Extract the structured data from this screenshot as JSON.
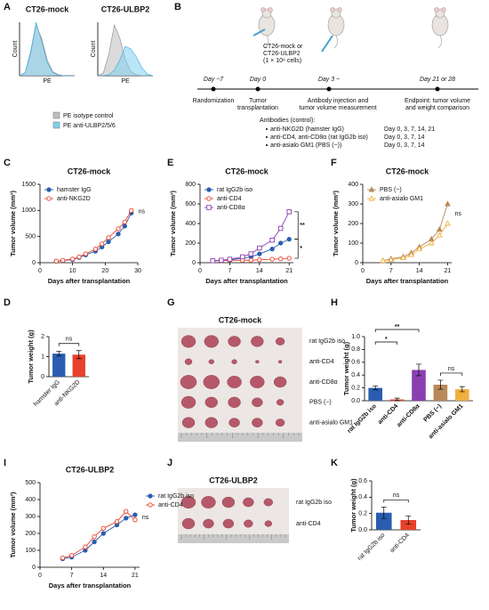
{
  "panel_labels": [
    "A",
    "B",
    "C",
    "D",
    "E",
    "F",
    "G",
    "H",
    "I",
    "J",
    "K"
  ],
  "timeline": {
    "cells_note": [
      "CT26-mock or",
      "CT26-ULBP2",
      "(1 × 10⁶ cells)"
    ],
    "days": [
      "Day −7",
      "Day 0",
      "Day 3 ~",
      "Day 21 or 28"
    ],
    "events": [
      [
        "Randomization"
      ],
      [
        "Tumor",
        "transplantation"
      ],
      [
        "Antibody injection and",
        "tumor volume measurement"
      ],
      [
        "Endpoint: tumor volume",
        "and weight comparison"
      ]
    ],
    "antibodies_title": "Antibodies (control):",
    "antibodies": [
      {
        "name": "anti-NKG2D (hamster IgG)",
        "schedule": "Day 0, 3, 7, 14, 21"
      },
      {
        "name": "anti-CD4, anti-CD8α (rat IgG2b iso)",
        "schedule": "Day 0, 3, 7, 14"
      },
      {
        "name": "anti-asialo GM1 (PBS (−))",
        "schedule": "Day 0, 3, 7, 14"
      }
    ]
  },
  "photos": [
    {
      "title": "CT26-mock",
      "rows": [
        "rat IgG2b iso",
        "anti-CD4",
        "anti-CD8α",
        "PBS (−)",
        "anti-asialo GM1"
      ]
    },
    {
      "title": "CT26-ULBP2",
      "rows": [
        "rat IgG2b iso",
        "anti-CD4"
      ]
    }
  ],
  "chart_data": [
    {
      "type": "area",
      "title": "CT26-mock",
      "xlabel": "PE",
      "ylabel": "Count",
      "xlim": [
        0,
        10
      ],
      "ylim": [
        0,
        100
      ],
      "x": [
        0,
        1,
        2,
        3,
        4,
        5,
        6,
        7,
        8,
        9,
        10
      ],
      "legend": "below",
      "series": [
        {
          "name": "PE isotype control",
          "color": "#bdbdbd",
          "values": [
            0,
            5,
            40,
            95,
            70,
            30,
            8,
            2,
            0,
            0,
            0
          ]
        },
        {
          "name": "PE anti-ULBP2/5/6",
          "color": "#7fd0f0",
          "values": [
            0,
            6,
            45,
            100,
            65,
            25,
            6,
            1,
            0,
            0,
            0
          ]
        }
      ]
    },
    {
      "type": "area",
      "title": "CT26-ULBP2",
      "xlabel": "PE",
      "ylabel": "Count",
      "xlim": [
        0,
        10
      ],
      "ylim": [
        0,
        100
      ],
      "x": [
        0,
        1,
        2,
        3,
        4,
        5,
        6,
        7,
        8,
        9,
        10
      ],
      "series": [
        {
          "color": "#bdbdbd",
          "values": [
            0,
            5,
            40,
            95,
            70,
            30,
            8,
            2,
            0,
            0,
            0
          ]
        },
        {
          "color": "#7fd0f0",
          "values": [
            0,
            0,
            2,
            10,
            30,
            55,
            50,
            35,
            15,
            3,
            0
          ]
        }
      ]
    },
    {
      "type": "line",
      "title": "CT26-mock",
      "xlabel": "Days after transplantation",
      "ylabel": "Tumor volume (mm³)",
      "xlim": [
        0,
        30
      ],
      "xticks": [
        0,
        10,
        20,
        30
      ],
      "ylim": [
        0,
        1500
      ],
      "yticks": [
        0,
        500,
        1000,
        1500
      ],
      "legend": "upper left",
      "annotations": [
        "ns"
      ],
      "x": [
        5,
        7,
        10,
        12,
        14,
        17,
        19,
        21,
        24,
        26,
        28
      ],
      "series": [
        {
          "name": "hamster IgG",
          "color": "#2a5db0",
          "marker": "circle",
          "open": false,
          "values": [
            30,
            40,
            60,
            100,
            150,
            220,
            300,
            400,
            550,
            700,
            950
          ]
        },
        {
          "name": "anti-NKG2D",
          "color": "#e8412c",
          "marker": "circle",
          "open": true,
          "values": [
            30,
            45,
            70,
            110,
            170,
            260,
            360,
            480,
            650,
            780,
            1000
          ]
        }
      ]
    },
    {
      "type": "bar",
      "ylabel": "Tumor weight (g)",
      "ylim": [
        0,
        2
      ],
      "yticks": [
        0,
        1,
        2
      ],
      "categories": [
        "hamster IgG",
        "anti-NKG2D"
      ],
      "values": [
        1.15,
        1.1
      ],
      "errors": [
        0.12,
        0.2
      ],
      "colors": [
        "#2a5db0",
        "#e8412c"
      ],
      "annotations": [
        "ns"
      ]
    },
    {
      "type": "line",
      "title": "CT26-mock",
      "xlabel": "Days after transplantation",
      "ylabel": "Tumor volume (mm³)",
      "xlim": [
        0,
        22
      ],
      "xticks": [
        0,
        7,
        14,
        21
      ],
      "ylim": [
        0,
        800
      ],
      "yticks": [
        0,
        200,
        400,
        600,
        800
      ],
      "legend": "upper left",
      "annotations": [
        "**",
        "*"
      ],
      "x": [
        3,
        5,
        7,
        10,
        12,
        14,
        17,
        19,
        21
      ],
      "series": [
        {
          "name": "rat IgG2b iso",
          "color": "#2a5db0",
          "marker": "circle",
          "open": false,
          "values": [
            20,
            25,
            30,
            45,
            60,
            90,
            140,
            200,
            240
          ]
        },
        {
          "name": "anti-CD4",
          "color": "#e8412c",
          "marker": "circle",
          "open": true,
          "values": [
            20,
            20,
            25,
            25,
            25,
            30,
            35,
            40,
            45
          ]
        },
        {
          "name": "anti-CD8α",
          "color": "#8a3fb0",
          "marker": "square",
          "open": true,
          "values": [
            20,
            25,
            35,
            60,
            90,
            150,
            230,
            350,
            520
          ]
        }
      ]
    },
    {
      "type": "line",
      "title": "CT26-mock",
      "xlabel": "Days after transplantation",
      "ylabel": "Tumor volume (mm³)",
      "xlim": [
        0,
        22
      ],
      "xticks": [
        0,
        7,
        14,
        21
      ],
      "ylim": [
        0,
        400
      ],
      "yticks": [
        0,
        100,
        200,
        300,
        400
      ],
      "legend": "upper left",
      "annotations": [
        "ns"
      ],
      "x": [
        5,
        7,
        10,
        12,
        14,
        17,
        19,
        21
      ],
      "series": [
        {
          "name": "PBS (−)",
          "color": "#b8895a",
          "marker": "triangle",
          "open": false,
          "values": [
            10,
            20,
            30,
            50,
            80,
            120,
            170,
            300
          ]
        },
        {
          "name": "anti-asialo GM1",
          "color": "#f0b040",
          "marker": "triangle",
          "open": true,
          "values": [
            10,
            15,
            25,
            40,
            70,
            100,
            140,
            200
          ]
        }
      ]
    },
    {
      "type": "bar",
      "ylabel": "Tumor weight (g)",
      "ylim": [
        0,
        1
      ],
      "yticks": [
        {
          "value": 0,
          "label": "0.0"
        },
        0.2,
        0.4,
        0.6,
        0.8,
        {
          "value": 1,
          "label": "1.0"
        }
      ],
      "categories": [
        "rat IgG2b iso",
        "anti-CD4",
        "anti-CD8α",
        "PBS (−)",
        "anti-asialo GM1"
      ],
      "values": [
        0.2,
        0.02,
        0.48,
        0.25,
        0.18
      ],
      "errors": [
        0.03,
        0.02,
        0.09,
        0.07,
        0.04
      ],
      "colors": [
        "#2a5db0",
        "#e8412c",
        "#8a3fb0",
        "#b8895a",
        "#f0b040"
      ],
      "annotations": [
        "*",
        "**",
        "ns"
      ]
    },
    {
      "type": "line",
      "title": "CT26-ULBP2",
      "xlabel": "Days after transplantation",
      "ylabel": "Tumor volume (mm³)",
      "xlim": [
        0,
        22
      ],
      "xticks": [
        0,
        7,
        14,
        21
      ],
      "ylim": [
        0,
        500
      ],
      "yticks": [
        0,
        100,
        200,
        300,
        400,
        500
      ],
      "legend": "outside right",
      "annotations": [
        "ns"
      ],
      "x": [
        5,
        7,
        10,
        12,
        14,
        17,
        19,
        21
      ],
      "series": [
        {
          "name": "rat IgG2b iso",
          "color": "#2a5db0",
          "marker": "circle",
          "open": false,
          "values": [
            50,
            60,
            100,
            150,
            200,
            250,
            290,
            310
          ]
        },
        {
          "name": "anti-CD4",
          "color": "#e8412c",
          "marker": "circle",
          "open": true,
          "values": [
            55,
            70,
            120,
            180,
            230,
            270,
            330,
            280
          ]
        }
      ]
    },
    {
      "type": "bar",
      "ylabel": "Tumor weight (g)",
      "ylim": [
        0,
        0.6
      ],
      "yticks": [
        {
          "value": 0,
          "label": "0.0"
        },
        0.2,
        0.4,
        0.6
      ],
      "categories": [
        "rat IgG2b iso",
        "anti-CD4"
      ],
      "values": [
        0.21,
        0.12
      ],
      "errors": [
        0.07,
        0.05
      ],
      "colors": [
        "#2a5db0",
        "#e8412c"
      ],
      "annotations": [
        "ns"
      ]
    }
  ]
}
